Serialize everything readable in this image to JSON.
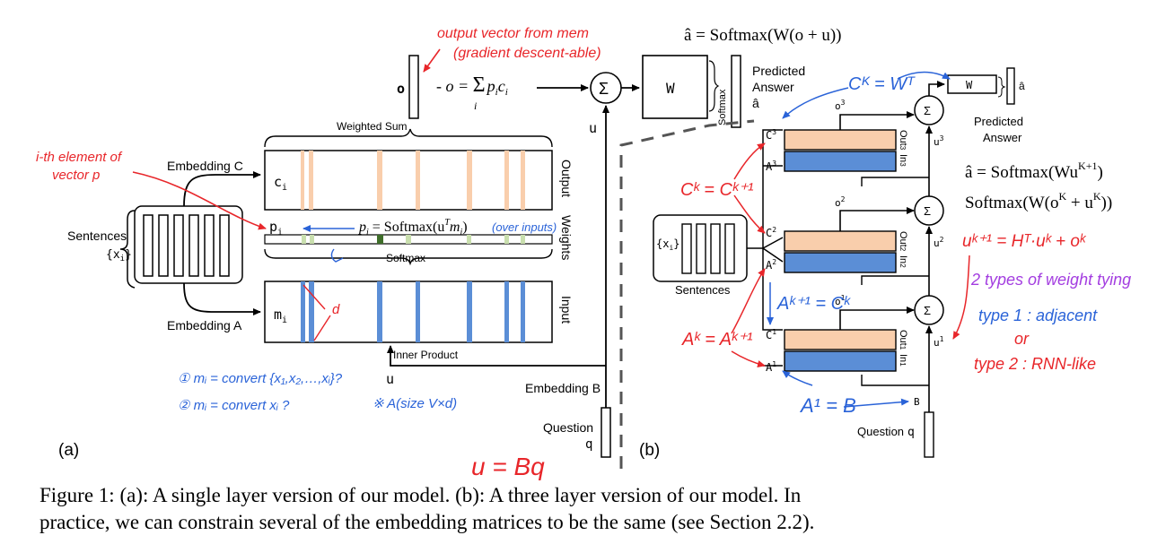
{
  "panel_a": {
    "label": "(a)",
    "sentences_label": "Sentences",
    "sentences_var": "{x",
    "sentences_sub": "i",
    "embedding_c": "Embedding C",
    "embedding_a": "Embedding A",
    "embedding_b": "Embedding B",
    "c_label": "c",
    "c_sub": "i",
    "m_label": "m",
    "m_sub": "i",
    "p_label": "p",
    "p_sub": "i",
    "output_label": "Output",
    "weights_label": "Weights",
    "input_label": "Input",
    "weighted_sum_label": "Weighted Sum",
    "softmax_label": "Softmax",
    "inner_product_label": "Inner Product",
    "o_label": "o",
    "o_eq": "o = Σ p",
    "o_eq_rest": "c",
    "o_eq_sub_i": "i",
    "p_eq": "p",
    "p_eq_rest": " = Softmax(u",
    "p_eq_T": "T",
    "p_eq_end": "m",
    "p_eq_close": ")",
    "u_label": "u",
    "sigma": "Σ",
    "w_box": "W",
    "softmax_side": "Softmax",
    "predicted": "Predicted",
    "answer": "Answer",
    "a_hat": "â",
    "question": "Question",
    "q": "q",
    "top_equation": "â = Softmax(W(o + u))"
  },
  "panel_b": {
    "label": "(b)",
    "sentences_label": "Sentences",
    "sentences_var": "{x",
    "sentences_sub": "i",
    "c3": "C",
    "c3_sup": "3",
    "a3": "A",
    "a3_sup": "3",
    "c2": "C",
    "c2_sup": "2",
    "a2": "A",
    "a2_sup": "2",
    "c1": "C",
    "c1_sup": "1",
    "a1": "A",
    "a1_sup": "1",
    "out3": "Out",
    "out3_sub": "3",
    "in3": "In",
    "in3_sub": "3",
    "out2": "Out",
    "out2_sub": "2",
    "in2": "In",
    "in2_sub": "2",
    "out1": "Out",
    "out1_sub": "1",
    "in1": "In",
    "in1_sub": "1",
    "o3": "o",
    "o3_sup": "3",
    "o2": "o",
    "o2_sup": "2",
    "o1": "o",
    "o1_sup": "1",
    "u3": "u",
    "u3_sup": "3",
    "u2": "u",
    "u2_sup": "2",
    "u1": "u",
    "u1_sup": "1",
    "sigma": "Σ",
    "w_box": "W",
    "a_hat": "â",
    "predicted": "Predicted",
    "answer": "Answer",
    "b_label": "B",
    "question": "Question",
    "q": "q",
    "eq1": "â = Softmax(Wu",
    "eq1_sup": "K+1",
    "eq1_close": ")",
    "eq2": "Softmax(W(o",
    "eq2_sup1": "K",
    "eq2_mid": " + u",
    "eq2_sup2": "K",
    "eq2_close": "))"
  },
  "annotations": {
    "output_vector_1": "output vector from mem",
    "output_vector_2": "(gradient descent-able)",
    "ith_element_1": "i-th element of",
    "ith_element_2": "vector p",
    "over_inputs": "(over inputs)",
    "d_mark": "d",
    "note1": "① mᵢ = convert {x₁,x₂,…,xᵢ}?",
    "note2": "② mᵢ = convert  xᵢ ?",
    "note3": "※ A(size V×d)",
    "u_eq_bq": "u = Bq",
    "ck_wt": "Cᴷ = Wᵀ",
    "ck_ck1": "Cᵏ = Cᵏ⁺¹",
    "ak1_ck": "Aᵏ⁺¹ = Cᵏ",
    "ak_ak1": "Aᵏ = Aᵏ⁺¹",
    "a1_b": "A¹ = B",
    "uk1": "uᵏ⁺¹ = Hᵀ·uᵏ + oᵏ",
    "two_types": "2 types of weight tying",
    "type1": "type 1 : adjacent",
    "or": "or",
    "type2": "type 2 : RNN-like"
  },
  "caption": {
    "line1": "Figure 1: (a): A single layer version of our model. (b): A three layer version of our model. In",
    "line2": "practice, we can constrain several of the embedding matrices to be the same (see Section 2.2)."
  },
  "colors": {
    "orange": "#f9ceac",
    "blue": "#5b8ed6",
    "green_dark": "#3f6e2a",
    "green_light": "#c9dfae",
    "ink_red": "#e8262a",
    "ink_blue": "#2a63d8",
    "ink_purple": "#a33de0"
  }
}
